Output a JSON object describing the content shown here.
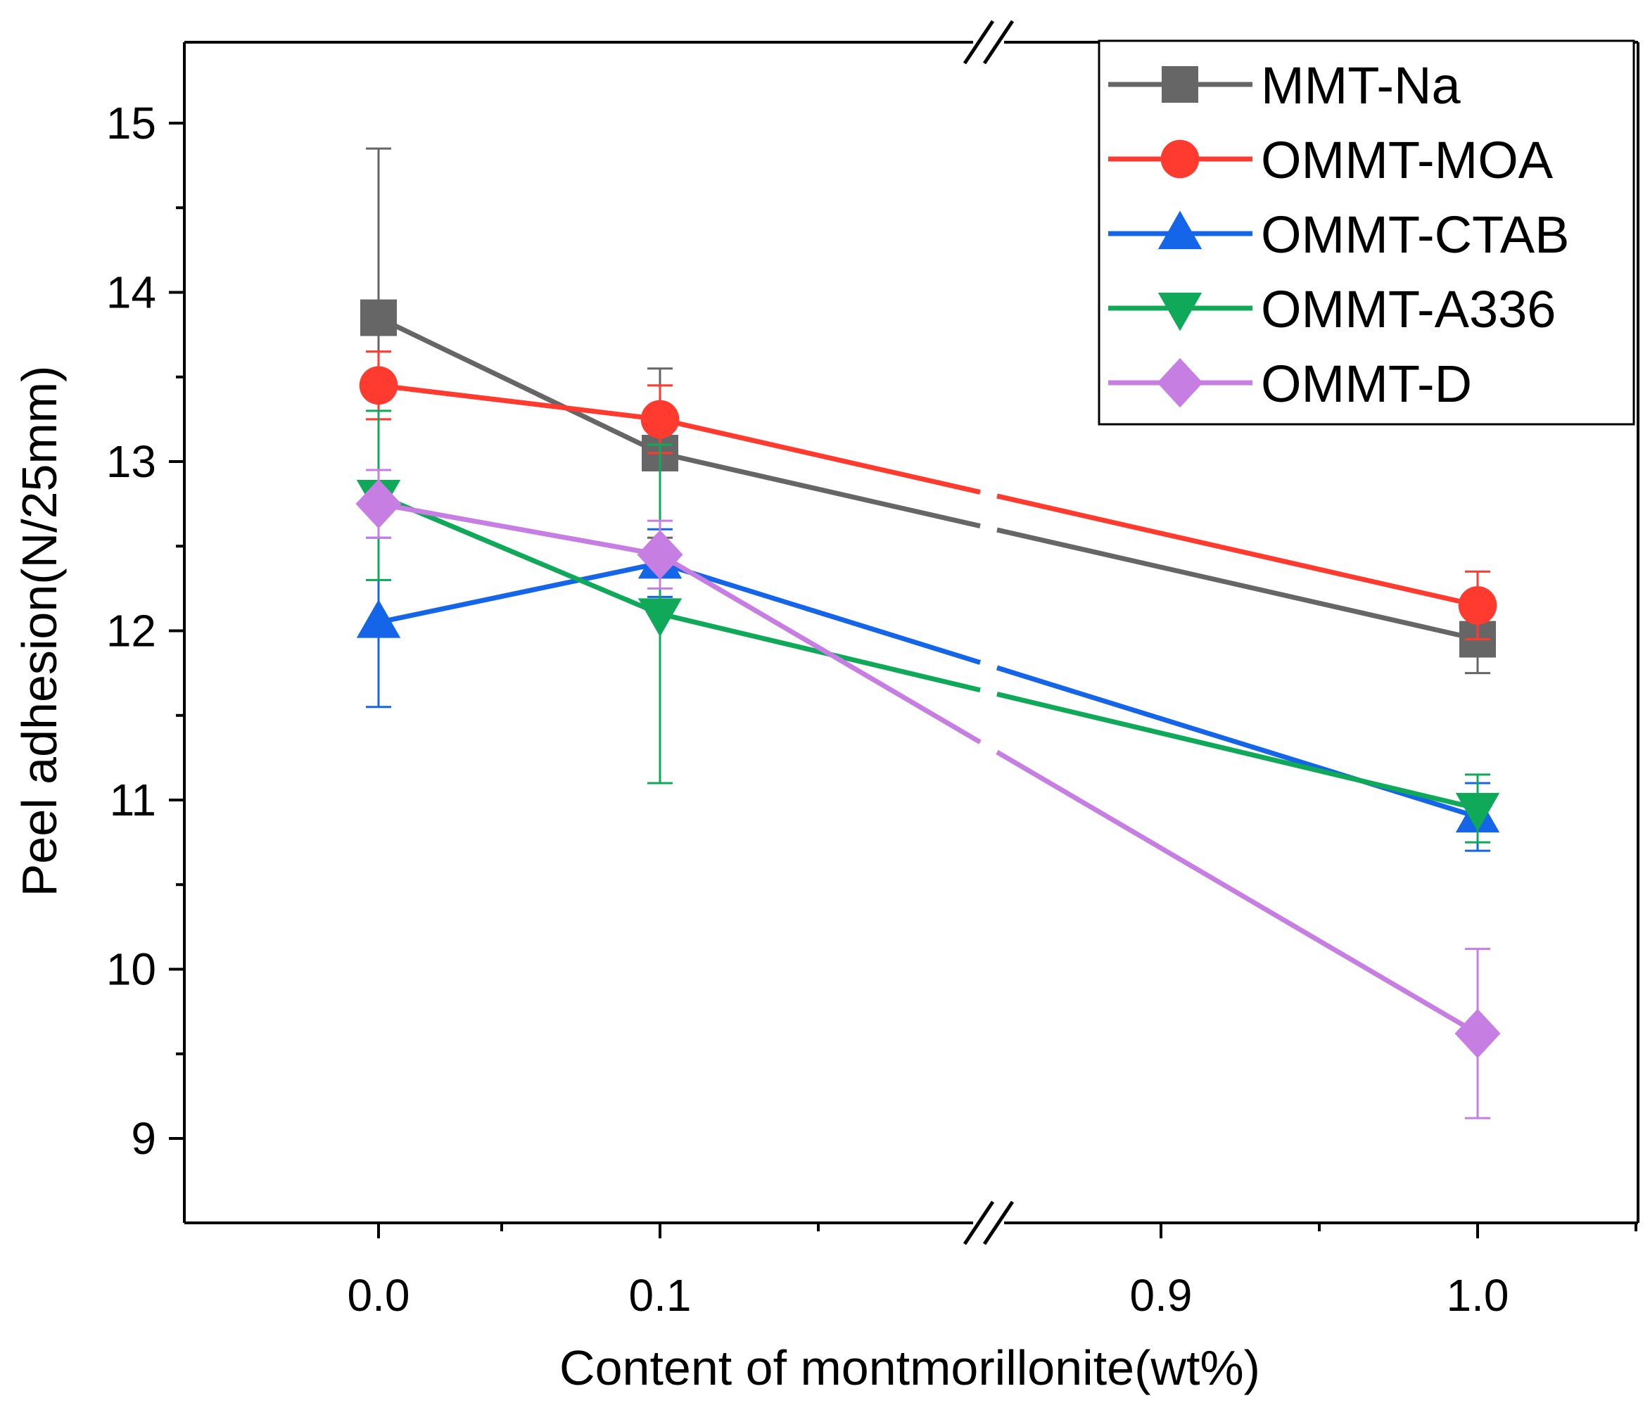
{
  "chart_data": {
    "type": "line",
    "title": "",
    "xlabel": "Content of montmorillonite(wt%)",
    "ylabel": "Peel adhesion(N/25mm)",
    "x_tick_labels": [
      "0.0",
      "0.1",
      "0.9",
      "1.0"
    ],
    "y_ticks": [
      9,
      10,
      11,
      12,
      13,
      14,
      15
    ],
    "y_tick_labels": [
      "9",
      "10",
      "11",
      "12",
      "13",
      "14",
      "15"
    ],
    "ylim": [
      8.5,
      15.5
    ],
    "axis_break": "between 0.1 and 0.9",
    "legend_position": "top-right",
    "x": [
      0.0,
      0.1,
      1.0
    ],
    "series": [
      {
        "name": "MMT-Na",
        "color": "#666666",
        "marker": "square",
        "values": [
          13.85,
          13.05,
          11.95
        ],
        "errors": [
          1.0,
          0.5,
          0.2
        ]
      },
      {
        "name": "OMMT-MOA",
        "color": "#ff3b30",
        "marker": "circle",
        "values": [
          13.45,
          13.25,
          12.15
        ],
        "errors": [
          0.2,
          0.2,
          0.2
        ]
      },
      {
        "name": "OMMT-CTAB",
        "color": "#1565e8",
        "marker": "triangle-up",
        "values": [
          12.05,
          12.4,
          10.9
        ],
        "errors": [
          0.5,
          0.2,
          0.2
        ]
      },
      {
        "name": "OMMT-A336",
        "color": "#10a95a",
        "marker": "triangle-down",
        "values": [
          12.8,
          12.1,
          10.95
        ],
        "errors": [
          0.5,
          1.0,
          0.2
        ]
      },
      {
        "name": "OMMT-D",
        "color": "#c67ee3",
        "marker": "diamond",
        "values": [
          12.75,
          12.45,
          9.62
        ],
        "errors": [
          0.2,
          0.2,
          0.5
        ]
      }
    ]
  }
}
